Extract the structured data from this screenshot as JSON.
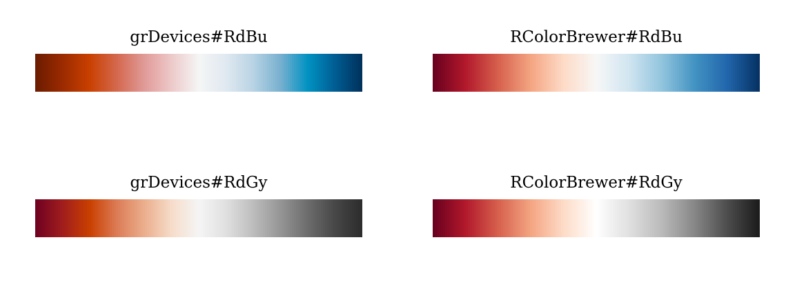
{
  "chart_data": [
    {
      "type": "heatmap",
      "title": "grDevices#RdBu",
      "colors": [
        "#6A1B00",
        "#9B2A00",
        "#C94000",
        "#D4684E",
        "#E09A98",
        "#EDC9C9",
        "#F5F5F5",
        "#E0E9F0",
        "#B8D3E4",
        "#78B0CF",
        "#0092C2",
        "#005D93",
        "#00305A"
      ]
    },
    {
      "type": "heatmap",
      "title": "RColorBrewer#RdBu",
      "colors": [
        "#67001F",
        "#B2182B",
        "#D6604D",
        "#F4A582",
        "#FDDBC7",
        "#F7F7F7",
        "#D1E5F0",
        "#92C5DE",
        "#4393C3",
        "#2166AC",
        "#053061"
      ]
    },
    {
      "type": "heatmap",
      "title": "grDevices#RdGy",
      "colors": [
        "#6E0021",
        "#A01D1D",
        "#C94000",
        "#DC7C56",
        "#EBAE8D",
        "#F6DCC9",
        "#F5F5F5",
        "#E0E0E0",
        "#BDBDBD",
        "#959595",
        "#6C6C6C",
        "#474747",
        "#2C2C2C"
      ]
    },
    {
      "type": "heatmap",
      "title": "RColorBrewer#RdGy",
      "colors": [
        "#67001F",
        "#B2182B",
        "#D6604D",
        "#F4A582",
        "#FDDBC7",
        "#FFFFFF",
        "#E0E0E0",
        "#BABABA",
        "#878787",
        "#4D4D4D",
        "#1A1A1A"
      ]
    }
  ]
}
